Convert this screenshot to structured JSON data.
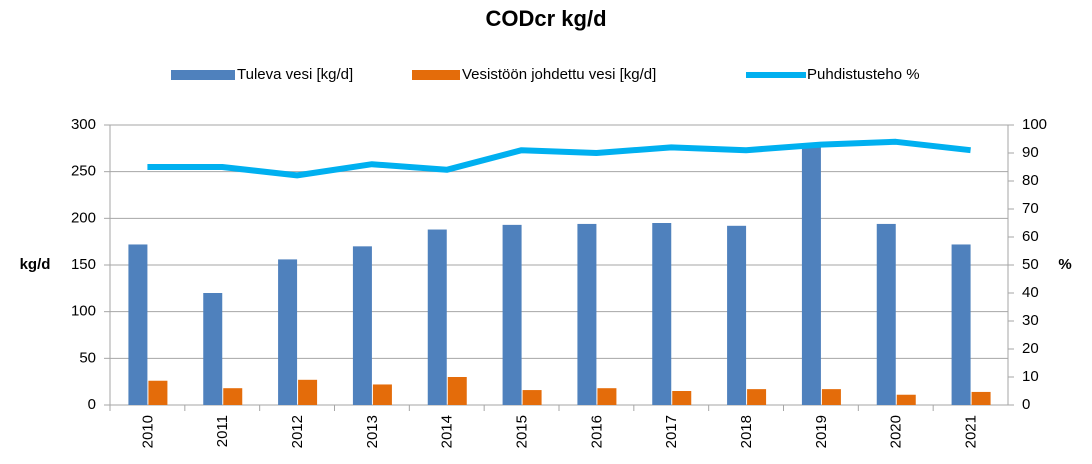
{
  "chart_data": {
    "type": "bar_line",
    "title": "CODcr kg/d",
    "ylabel": "kg/d",
    "y2label": "%",
    "categories": [
      "2010",
      "2011",
      "2012",
      "2013",
      "2014",
      "2015",
      "2016",
      "2017",
      "2018",
      "2019",
      "2020",
      "2021"
    ],
    "series": [
      {
        "name": "Tuleva vesi [kg/d]",
        "color": "#4f81bd",
        "type": "bar",
        "values": [
          172,
          120,
          156,
          170,
          188,
          193,
          194,
          195,
          192,
          278,
          194,
          172
        ]
      },
      {
        "name": "Vesistöön johdettu vesi [kg/d]",
        "color": "#e46c0a",
        "type": "bar",
        "values": [
          26,
          18,
          27,
          22,
          30,
          16,
          18,
          15,
          17,
          17,
          11,
          14
        ]
      },
      {
        "name": "Puhdistusteho %",
        "color": "#00b0f0",
        "type": "line",
        "axis": "y2",
        "values": [
          85,
          85,
          82,
          86,
          84,
          91,
          90,
          92,
          91,
          93,
          94,
          91
        ]
      }
    ],
    "ylim": [
      0,
      300
    ],
    "yticks": [
      0,
      50,
      100,
      150,
      200,
      250,
      300
    ],
    "y2lim": [
      0,
      100
    ],
    "y2ticks": [
      0,
      10,
      20,
      30,
      40,
      50,
      60,
      70,
      80,
      90,
      100
    ],
    "grid": true,
    "legend": "top"
  }
}
